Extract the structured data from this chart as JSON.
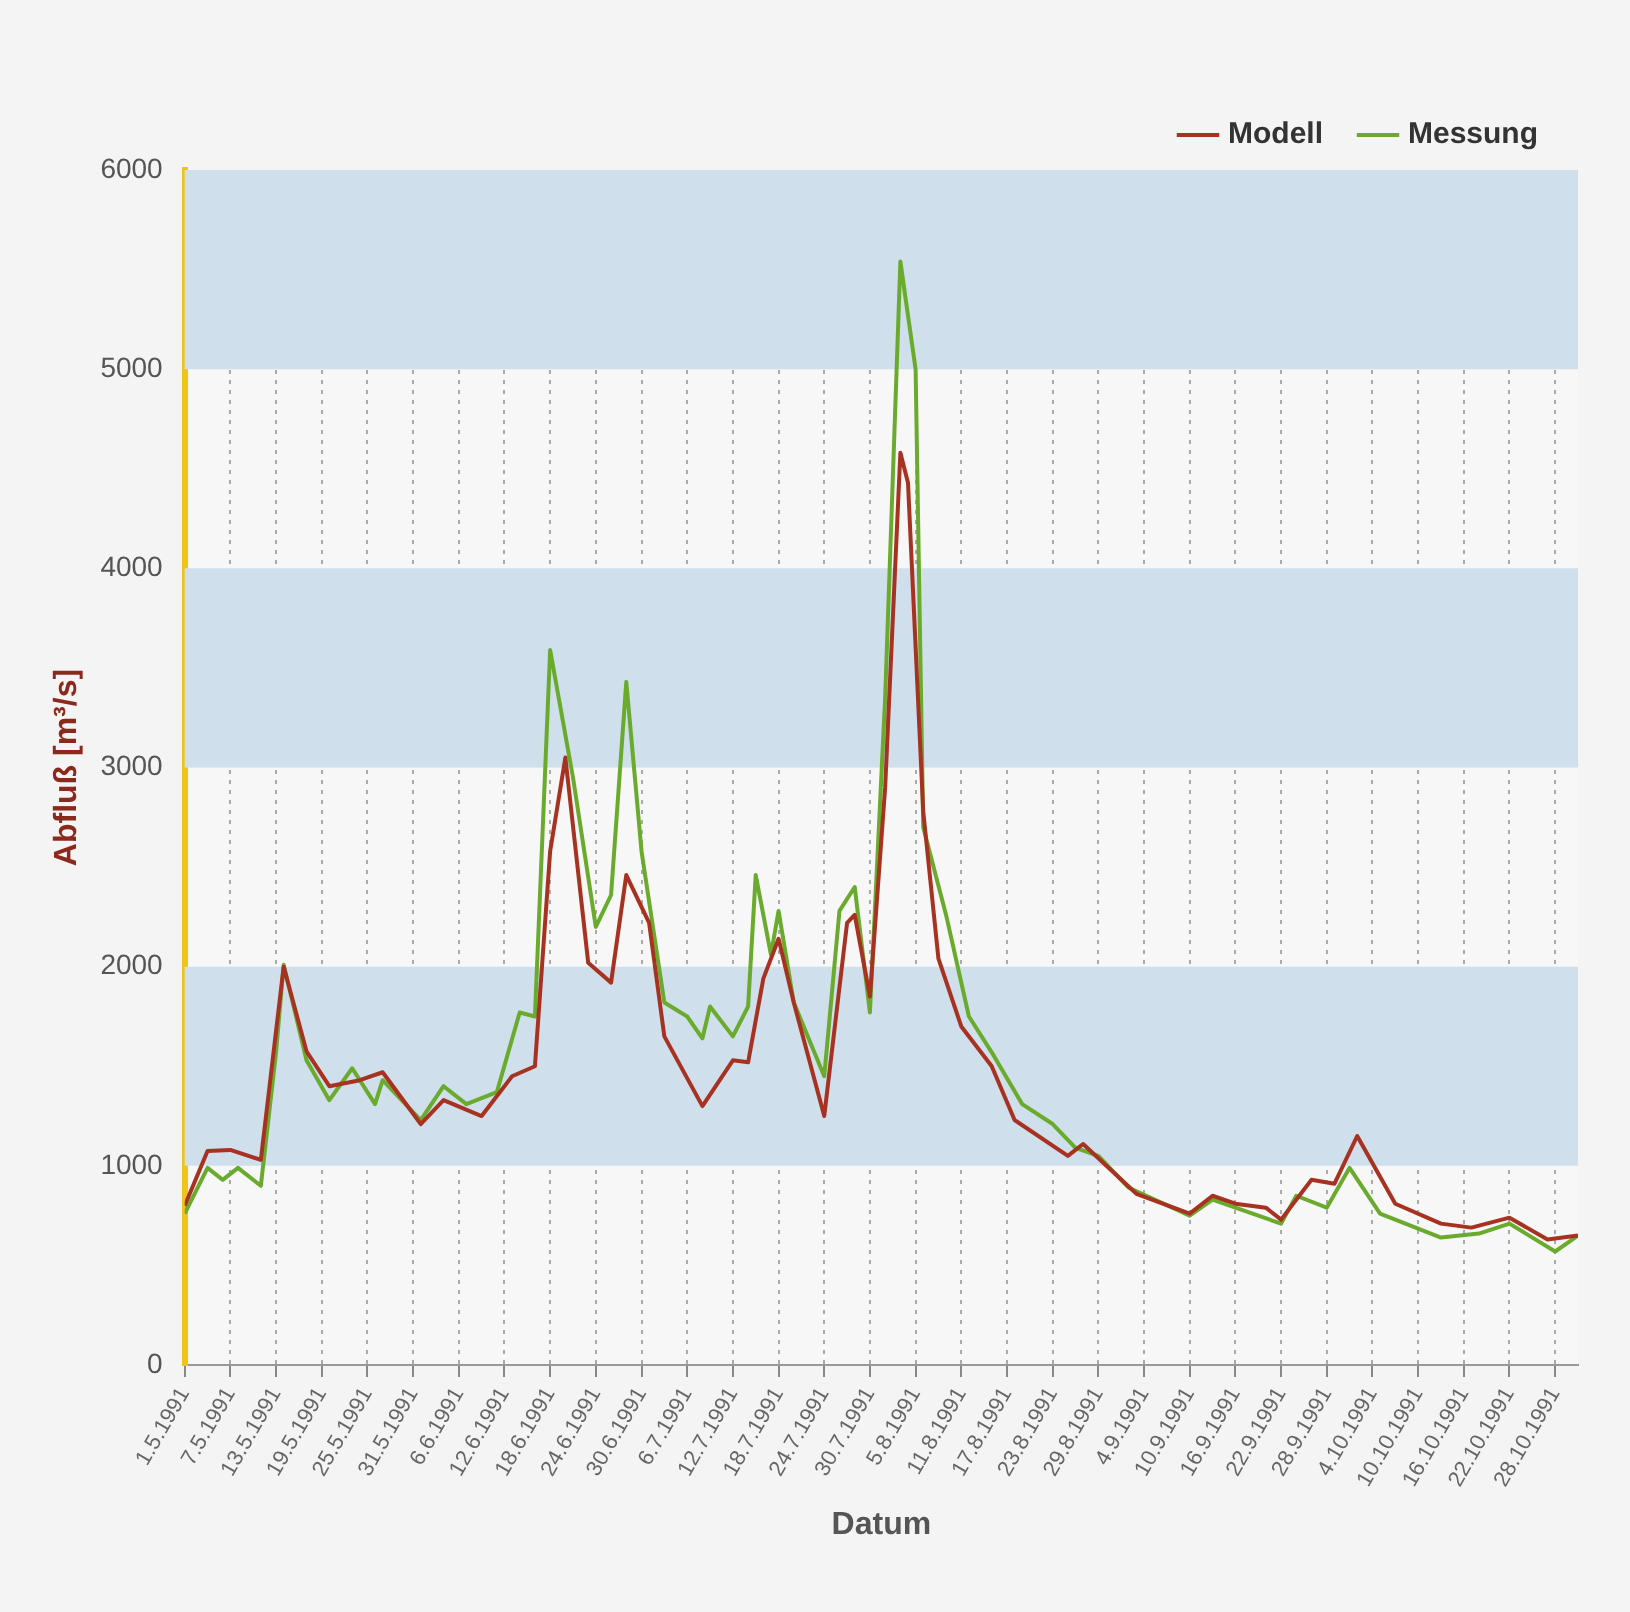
{
  "chart_data": {
    "type": "line",
    "xlabel": "Datum",
    "ylabel": "Abfluß [m³/s]",
    "legend": "top right",
    "grid": "x",
    "marker": "none",
    "line_style": "solid",
    "xlim": [
      "1991-05-01",
      "1991-10-31"
    ],
    "xticks": [
      {
        "value": "1991-05-01",
        "label": "1.5.1991"
      },
      {
        "value": "1991-05-07",
        "label": "7.5.1991"
      },
      {
        "value": "1991-05-13",
        "label": "13.5.1991"
      },
      {
        "value": "1991-05-19",
        "label": "19.5.1991"
      },
      {
        "value": "1991-05-25",
        "label": "25.5.1991"
      },
      {
        "value": "1991-05-31",
        "label": "31.5.1991"
      },
      {
        "value": "1991-06-06",
        "label": "6.6.1991"
      },
      {
        "value": "1991-06-12",
        "label": "12.6.1991"
      },
      {
        "value": "1991-06-18",
        "label": "18.6.1991"
      },
      {
        "value": "1991-06-24",
        "label": "24.6.1991"
      },
      {
        "value": "1991-06-30",
        "label": "30.6.1991"
      },
      {
        "value": "1991-07-06",
        "label": "6.7.1991"
      },
      {
        "value": "1991-07-12",
        "label": "12.7.1991"
      },
      {
        "value": "1991-07-18",
        "label": "18.7.1991"
      },
      {
        "value": "1991-07-24",
        "label": "24.7.1991"
      },
      {
        "value": "1991-07-30",
        "label": "30.7.1991"
      },
      {
        "value": "1991-08-05",
        "label": "5.8.1991"
      },
      {
        "value": "1991-08-11",
        "label": "11.8.1991"
      },
      {
        "value": "1991-08-17",
        "label": "17.8.1991"
      },
      {
        "value": "1991-08-23",
        "label": "23.8.1991"
      },
      {
        "value": "1991-08-29",
        "label": "29.8.1991"
      },
      {
        "value": "1991-09-04",
        "label": "4.9.1991"
      },
      {
        "value": "1991-09-10",
        "label": "10.9.1991"
      },
      {
        "value": "1991-09-16",
        "label": "16.9.1991"
      },
      {
        "value": "1991-09-22",
        "label": "22.9.1991"
      },
      {
        "value": "1991-09-28",
        "label": "28.9.1991"
      },
      {
        "value": "1991-10-04",
        "label": "4.10.1991"
      },
      {
        "value": "1991-10-10",
        "label": "10.10.1991"
      },
      {
        "value": "1991-10-16",
        "label": "16.10.1991"
      },
      {
        "value": "1991-10-22",
        "label": "22.10.1991"
      },
      {
        "value": "1991-10-28",
        "label": "28.10.1991"
      }
    ],
    "ylim": [
      0,
      6000
    ],
    "yticks": [
      0,
      1000,
      2000,
      3000,
      4000,
      5000,
      6000
    ],
    "bands": [
      {
        "axis": "y",
        "from": 1000,
        "to": 2000,
        "color": "#cfdfec"
      },
      {
        "axis": "y",
        "from": 3000,
        "to": 4000,
        "color": "#cfdfec"
      },
      {
        "axis": "y",
        "from": 5000,
        "to": 6000,
        "color": "#cfdfec"
      }
    ],
    "series": [
      {
        "name": "Modell",
        "color": "#a83222",
        "x": [
          "1991-05-01",
          "1991-05-04",
          "1991-05-07",
          "1991-05-11",
          "1991-05-14",
          "1991-05-17",
          "1991-05-20",
          "1991-05-24",
          "1991-05-27",
          "1991-06-01",
          "1991-06-04",
          "1991-06-09",
          "1991-06-13",
          "1991-06-16",
          "1991-06-18",
          "1991-06-20",
          "1991-06-23",
          "1991-06-26",
          "1991-06-28",
          "1991-07-01",
          "1991-07-03",
          "1991-07-08",
          "1991-07-12",
          "1991-07-14",
          "1991-07-16",
          "1991-07-18",
          "1991-07-20",
          "1991-07-24",
          "1991-07-27",
          "1991-07-28",
          "1991-07-30",
          "1991-08-01",
          "1991-08-03",
          "1991-08-04",
          "1991-08-06",
          "1991-08-08",
          "1991-08-11",
          "1991-08-15",
          "1991-08-18",
          "1991-08-25",
          "1991-08-27",
          "1991-09-03",
          "1991-09-10",
          "1991-09-13",
          "1991-09-16",
          "1991-09-20",
          "1991-09-22",
          "1991-09-26",
          "1991-09-29",
          "1991-10-02",
          "1991-10-07",
          "1991-10-13",
          "1991-10-17",
          "1991-10-22",
          "1991-10-27",
          "1991-10-31"
        ],
        "values": [
          800,
          1075,
          1080,
          1030,
          2000,
          1575,
          1400,
          1430,
          1470,
          1210,
          1330,
          1250,
          1450,
          1500,
          2580,
          3050,
          2020,
          1920,
          2460,
          2220,
          1650,
          1300,
          1530,
          1520,
          1940,
          2140,
          1820,
          1250,
          2220,
          2260,
          1850,
          2900,
          4580,
          4430,
          2780,
          2040,
          1700,
          1500,
          1230,
          1050,
          1110,
          860,
          760,
          850,
          810,
          790,
          730,
          930,
          910,
          1150,
          810,
          710,
          690,
          740,
          630,
          650
        ]
      },
      {
        "name": "Messung",
        "color": "#6aab2e",
        "x": [
          "1991-05-01",
          "1991-05-04",
          "1991-05-06",
          "1991-05-08",
          "1991-05-11",
          "1991-05-13",
          "1991-05-14",
          "1991-05-17",
          "1991-05-20",
          "1991-05-23",
          "1991-05-26",
          "1991-05-27",
          "1991-06-01",
          "1991-06-04",
          "1991-06-07",
          "1991-06-11",
          "1991-06-14",
          "1991-06-16",
          "1991-06-18",
          "1991-06-21",
          "1991-06-24",
          "1991-06-26",
          "1991-06-28",
          "1991-06-30",
          "1991-07-03",
          "1991-07-06",
          "1991-07-08",
          "1991-07-09",
          "1991-07-12",
          "1991-07-14",
          "1991-07-15",
          "1991-07-17",
          "1991-07-18",
          "1991-07-20",
          "1991-07-24",
          "1991-07-26",
          "1991-07-28",
          "1991-07-30",
          "1991-08-01",
          "1991-08-03",
          "1991-08-05",
          "1991-08-06",
          "1991-08-09",
          "1991-08-12",
          "1991-08-15",
          "1991-08-19",
          "1991-08-23",
          "1991-08-26",
          "1991-08-29",
          "1991-09-02",
          "1991-09-10",
          "1991-09-13",
          "1991-09-16",
          "1991-09-22",
          "1991-09-24",
          "1991-09-28",
          "1991-10-01",
          "1991-10-05",
          "1991-10-13",
          "1991-10-18",
          "1991-10-22",
          "1991-10-28",
          "1991-10-31"
        ],
        "values": [
          760,
          990,
          930,
          990,
          900,
          1570,
          2010,
          1530,
          1330,
          1490,
          1310,
          1430,
          1230,
          1400,
          1310,
          1370,
          1770,
          1750,
          3590,
          2950,
          2200,
          2360,
          3430,
          2580,
          1820,
          1750,
          1640,
          1800,
          1650,
          1800,
          2460,
          2060,
          2280,
          1820,
          1450,
          2280,
          2400,
          1770,
          3350,
          5540,
          5000,
          2700,
          2260,
          1750,
          1570,
          1310,
          1210,
          1090,
          1050,
          890,
          750,
          830,
          790,
          710,
          850,
          790,
          990,
          760,
          640,
          660,
          710,
          570,
          650
        ]
      }
    ]
  }
}
